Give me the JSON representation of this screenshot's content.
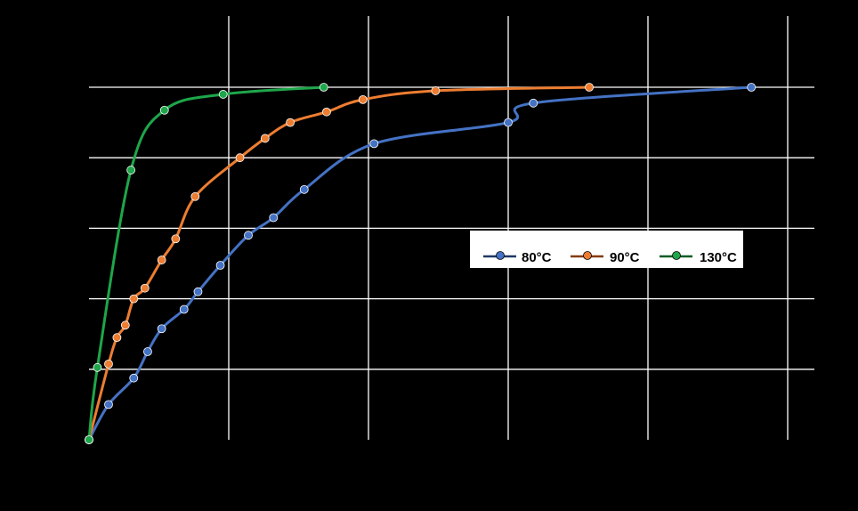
{
  "chart_data": {
    "type": "scatter",
    "title": "",
    "xlabel": "",
    "ylabel": "",
    "xlim": [
      0,
      260
    ],
    "ylim": [
      0,
      1
    ],
    "x_gridlines": [
      0,
      50,
      100,
      150,
      200,
      250
    ],
    "y_gridlines": [
      0.2,
      0.4,
      0.6,
      0.8,
      1.0
    ],
    "grid": true,
    "legend_position": "center-right",
    "series": [
      {
        "name": "80°C",
        "color": "#4472C4",
        "marker": "circle",
        "line": "smooth",
        "x": [
          0,
          7,
          16,
          21,
          26,
          34,
          39,
          47,
          57,
          66,
          77,
          102,
          150,
          159,
          237
        ],
        "y": [
          0,
          0.1,
          0.175,
          0.25,
          0.315,
          0.37,
          0.42,
          0.495,
          0.58,
          0.63,
          0.71,
          0.84,
          0.9,
          0.955,
          1.0
        ]
      },
      {
        "name": "90°C",
        "color": "#ED7D31",
        "marker": "circle",
        "line": "smooth",
        "x": [
          0,
          7,
          10,
          13,
          16,
          20,
          26,
          31,
          38,
          54,
          63,
          72,
          85,
          98,
          124,
          179
        ],
        "y": [
          0,
          0.215,
          0.29,
          0.325,
          0.4,
          0.43,
          0.51,
          0.57,
          0.69,
          0.8,
          0.855,
          0.9,
          0.93,
          0.965,
          0.99,
          1.0
        ]
      },
      {
        "name": "130°C",
        "color": "#1EA64A",
        "marker": "circle",
        "line": "smooth",
        "x": [
          0,
          3,
          15,
          27,
          48,
          84
        ],
        "y": [
          0,
          0.205,
          0.765,
          0.935,
          0.98,
          1.0
        ]
      }
    ]
  }
}
